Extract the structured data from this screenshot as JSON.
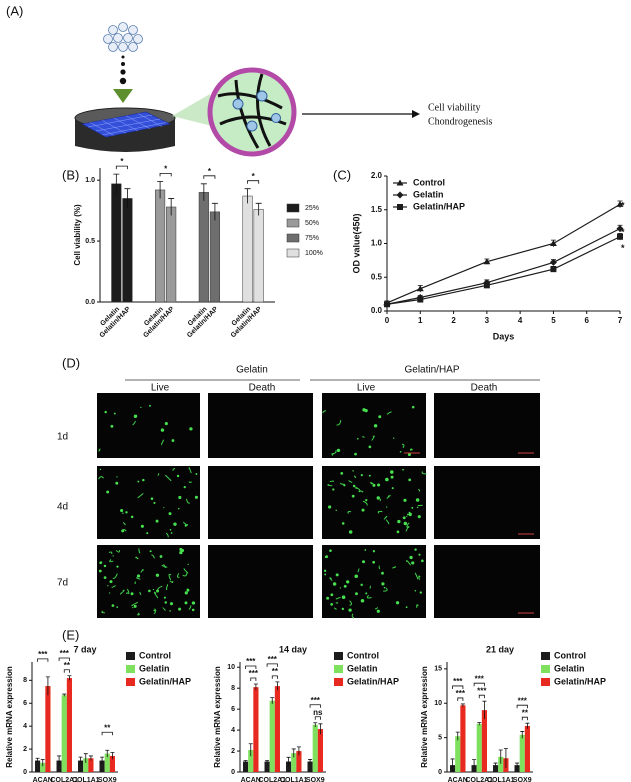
{
  "panels": {
    "a": "(A)",
    "b": "(B)",
    "c": "(C)",
    "d": "(D)",
    "e": "(E)"
  },
  "diagram": {
    "outcome1": "Cell viability",
    "outcome2": "Chondrogenesis"
  },
  "imaging": {
    "groups": [
      "Gelatin",
      "Gelatin/HAP"
    ],
    "columns": [
      "Live",
      "Death",
      "Live",
      "Death"
    ],
    "rows": [
      "1d",
      "4d",
      "7d"
    ]
  },
  "chart_data": [
    {
      "type": "grouped_bar",
      "ylabel": "Cell viability (%)",
      "categories": [
        "Gelatin",
        "Gelatin/HAP"
      ],
      "series": [
        {
          "name": "25%",
          "color": "#1c1c1c",
          "values": [
            0.97,
            0.85
          ],
          "errors": [
            0.08,
            0.08
          ]
        },
        {
          "name": "50%",
          "color": "#9a9a9a",
          "values": [
            0.92,
            0.78
          ],
          "errors": [
            0.07,
            0.07
          ]
        },
        {
          "name": "75%",
          "color": "#6e6e6e",
          "values": [
            0.9,
            0.74
          ],
          "errors": [
            0.07,
            0.07
          ]
        },
        {
          "name": "100%",
          "color": "#e0e0e0",
          "values": [
            0.87,
            0.76
          ],
          "errors": [
            0.06,
            0.05
          ]
        }
      ],
      "annotations": [
        "*",
        "*",
        "*",
        "*"
      ],
      "ylim": [
        0,
        1.1
      ],
      "yticks": [
        {
          "value": 0,
          "label": "0.0"
        },
        {
          "value": 0.5,
          "label": "0.5"
        },
        {
          "value": 1,
          "label": "1.0"
        }
      ],
      "legend": "right"
    },
    {
      "type": "line",
      "xlabel": "Days",
      "ylabel": "OD value(450)",
      "x": [
        0,
        1,
        3,
        5,
        7
      ],
      "series": [
        {
          "name": "Control",
          "color": "#1c1c1c",
          "marker": "triangle",
          "values": [
            0.12,
            0.33,
            0.73,
            1.0,
            1.58
          ],
          "errors": [
            0.03,
            0.05,
            0.04,
            0.05,
            0.05
          ]
        },
        {
          "name": "Gelatin",
          "color": "#1c1c1c",
          "marker": "diamond",
          "values": [
            0.1,
            0.2,
            0.42,
            0.72,
            1.22
          ],
          "errors": [
            0.03,
            0.03,
            0.04,
            0.04,
            0.05
          ]
        },
        {
          "name": "Gelatin/HAP",
          "color": "#1c1c1c",
          "marker": "square",
          "values": [
            0.1,
            0.17,
            0.38,
            0.62,
            1.1
          ],
          "errors": [
            0.03,
            0.03,
            0.03,
            0.04,
            0.05
          ]
        }
      ],
      "annotations": [
        "*",
        "*",
        "*"
      ],
      "xlim": [
        0,
        7
      ],
      "xticks": [
        0,
        1,
        2,
        3,
        4,
        5,
        6,
        7
      ],
      "ylim": [
        0,
        2
      ],
      "yticks": [
        {
          "value": 0,
          "label": "0.0"
        },
        {
          "value": 0.5,
          "label": "0.5"
        },
        {
          "value": 1,
          "label": "1.0"
        },
        {
          "value": 1.5,
          "label": "1.5"
        },
        {
          "value": 2,
          "label": "2.0"
        }
      ],
      "legend": "upper left"
    },
    {
      "type": "bar",
      "title": "7 day",
      "ylabel": "Relative mRNA expression",
      "categories": [
        "ACAN",
        "COL2A1",
        "COL1A1",
        "SOX9"
      ],
      "series": [
        {
          "name": "Control",
          "color": "#1c1c1c",
          "values": [
            1.0,
            1.0,
            1.0,
            1.0
          ],
          "errors": [
            0.2,
            0.4,
            0.3,
            0.3
          ]
        },
        {
          "name": "Gelatin",
          "color": "#7ee05c",
          "values": [
            0.8,
            6.7,
            1.2,
            1.6
          ],
          "errors": [
            0.3,
            0.1,
            0.4,
            0.3
          ]
        },
        {
          "name": "Gelatin/HAP",
          "color": "#e8291f",
          "values": [
            7.5,
            8.2,
            1.2,
            1.4
          ],
          "errors": [
            0.8,
            0.2,
            0.2,
            0.3
          ]
        }
      ],
      "annotations": [
        "***",
        "***",
        "**",
        "**"
      ],
      "ylim": [
        0,
        9.6
      ],
      "yticks": [
        0,
        2,
        4,
        6,
        8
      ],
      "legend": "right"
    },
    {
      "type": "bar",
      "title": "14 day",
      "ylabel": "Relative mRNA expression",
      "categories": [
        "ACAN",
        "COL2A1",
        "COL1A1",
        "SOX9"
      ],
      "series": [
        {
          "name": "Control",
          "color": "#1c1c1c",
          "values": [
            1.0,
            1.0,
            1.0,
            1.0
          ],
          "errors": [
            0.1,
            0.1,
            0.4,
            0.2
          ]
        },
        {
          "name": "Gelatin",
          "color": "#7ee05c",
          "values": [
            2.1,
            6.8,
            1.8,
            4.5
          ],
          "errors": [
            0.6,
            0.3,
            0.4,
            0.2
          ]
        },
        {
          "name": "Gelatin/HAP",
          "color": "#e8291f",
          "values": [
            8.1,
            8.2,
            2.0,
            4.1
          ],
          "errors": [
            0.3,
            0.4,
            0.4,
            0.5
          ]
        }
      ],
      "annotations": [
        "***",
        "***",
        "***",
        "**",
        "***",
        "ns"
      ],
      "ylim": [
        0,
        10.5
      ],
      "yticks": [
        0,
        2,
        4,
        6,
        8,
        10
      ],
      "legend": "right"
    },
    {
      "type": "bar",
      "title": "21 day",
      "ylabel": "Relative mRNA expression",
      "categories": [
        "ACAN",
        "COL2A1",
        "COL1A1",
        "SOX9"
      ],
      "series": [
        {
          "name": "Control",
          "color": "#1c1c1c",
          "values": [
            1.0,
            1.0,
            1.0,
            1.0
          ],
          "errors": [
            0.9,
            0.8,
            0.3,
            0.3
          ]
        },
        {
          "name": "Gelatin",
          "color": "#7ee05c",
          "values": [
            5.2,
            7.0,
            2.2,
            5.4
          ],
          "errors": [
            0.6,
            0.2,
            1.0,
            0.5
          ]
        },
        {
          "name": "Gelatin/HAP",
          "color": "#e8291f",
          "values": [
            9.7,
            9.0,
            2.0,
            6.7
          ],
          "errors": [
            0.2,
            1.3,
            1.4,
            0.4
          ]
        }
      ],
      "annotations": [
        "***",
        "***",
        "***",
        "***",
        "***",
        "**"
      ],
      "ylim": [
        0,
        16
      ],
      "yticks": [
        0,
        5,
        10,
        15
      ],
      "legend": "right"
    }
  ]
}
